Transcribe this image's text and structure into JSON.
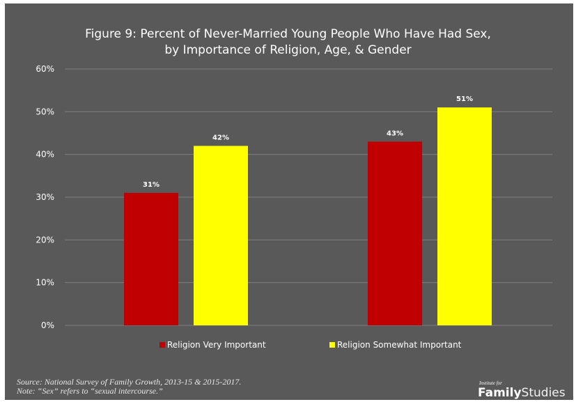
{
  "chart_data": {
    "type": "bar",
    "title_lines": [
      "Figure 9: Percent of Never-Married Young People Who Have Had Sex,",
      "by Importance of Religion, Age, & Gender"
    ],
    "categories": [
      "",
      ""
    ],
    "series": [
      {
        "name": "Religion Very Important",
        "values": [
          31,
          43
        ],
        "labels": [
          "31%",
          "43%"
        ],
        "color": "#c00000"
      },
      {
        "name": "Religion Somewhat Important",
        "values": [
          42,
          51
        ],
        "labels": [
          "42%",
          "51%"
        ],
        "color": "#ffff00"
      }
    ],
    "ylim": [
      0,
      60
    ],
    "yticks": [
      "0%",
      "10%",
      "20%",
      "30%",
      "40%",
      "50%",
      "60%"
    ],
    "xlabel": "",
    "ylabel": "",
    "grid": true,
    "legend_position": "bottom",
    "colors": {
      "background": "#595959",
      "gridline": "#7f7f7f",
      "text": "#ffffff"
    }
  },
  "footnote": {
    "source": "Source: National Survey of Family Growth, 2013-15 & 2015-2017.",
    "note": "Note: “Sex” refers to “sexual intercourse.”"
  },
  "brand": {
    "small": "Institute for",
    "bold": "Family",
    "rest": "Studies"
  }
}
